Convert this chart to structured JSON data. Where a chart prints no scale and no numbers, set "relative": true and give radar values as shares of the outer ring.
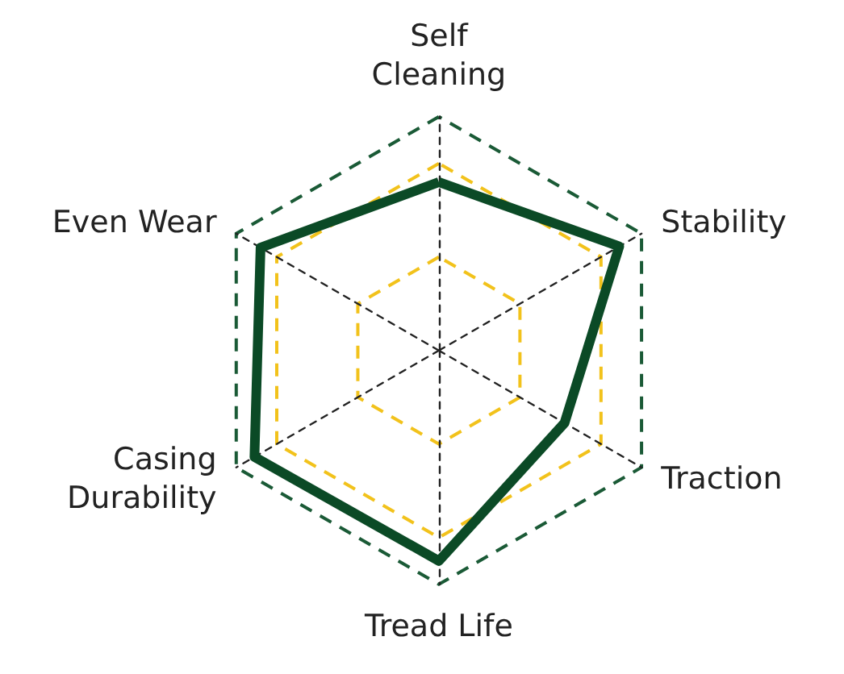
{
  "chart_data": {
    "type": "radar",
    "relative": true,
    "categories": [
      "Self\nCleaning",
      "Stability",
      "Traction",
      "Tread Life",
      "Casing\nDurability",
      "Even Wear"
    ],
    "series": [
      {
        "color": "#0b4a26",
        "values": [
          0.72,
          0.89,
          0.62,
          0.9,
          0.91,
          0.88
        ]
      }
    ],
    "marker": "none"
  }
}
